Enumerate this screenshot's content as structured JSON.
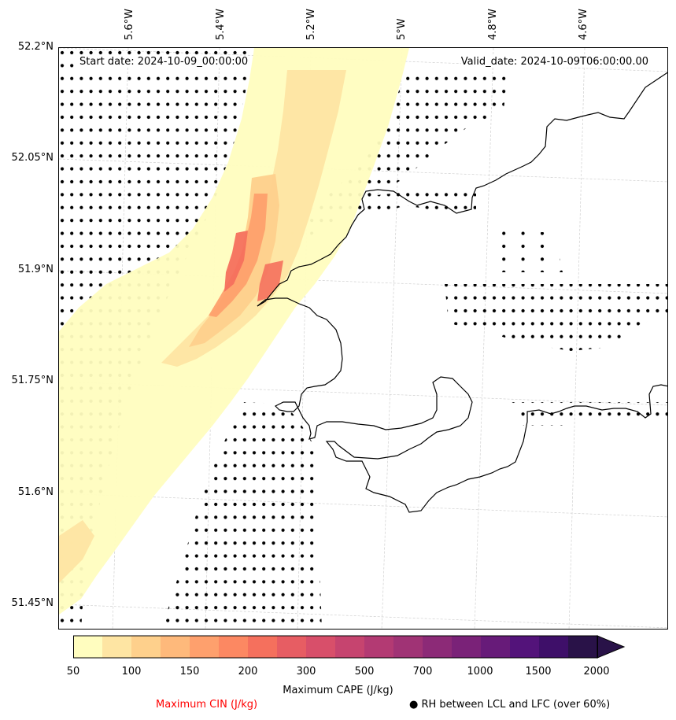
{
  "header": {
    "start_date": "Start date: 2024-10-09_00:00:00",
    "valid_date": "Valid_date: 2024-10-09T06:00:00.00"
  },
  "axes": {
    "lon_labels": [
      "5.6°W",
      "5.4°W",
      "5.2°W",
      "5°W",
      "4.8°W",
      "4.6°W"
    ],
    "lat_labels": [
      "52.2°N",
      "52.05°N",
      "51.9°N",
      "51.75°N",
      "51.6°N",
      "51.45°N"
    ]
  },
  "colorbar": {
    "title": "Maximum CAPE (J/kg)",
    "ticks": [
      "50",
      "100",
      "150",
      "200",
      "300",
      "500",
      "700",
      "1000",
      "1500",
      "2000"
    ],
    "colors": [
      "#fffdbf",
      "#fee5a3",
      "#fed08c",
      "#feb97b",
      "#fea06d",
      "#fc8862",
      "#f5705d",
      "#e75d63",
      "#d84f6a",
      "#c6446f",
      "#b33a73",
      "#a03375",
      "#8c2a77",
      "#7a2278",
      "#671b79",
      "#53137a",
      "#3e0f69",
      "#291248"
    ]
  },
  "legend": {
    "cin_label": "Maximum CIN (J/kg)",
    "cin_color": "#ff0000",
    "rh_label": "RH between LCL and LFC (over 60%)",
    "rh_symbol": "●"
  },
  "map": {
    "coast_color": "#000000",
    "grid_color": "#d0d0d0",
    "dot_color": "#000000"
  }
}
